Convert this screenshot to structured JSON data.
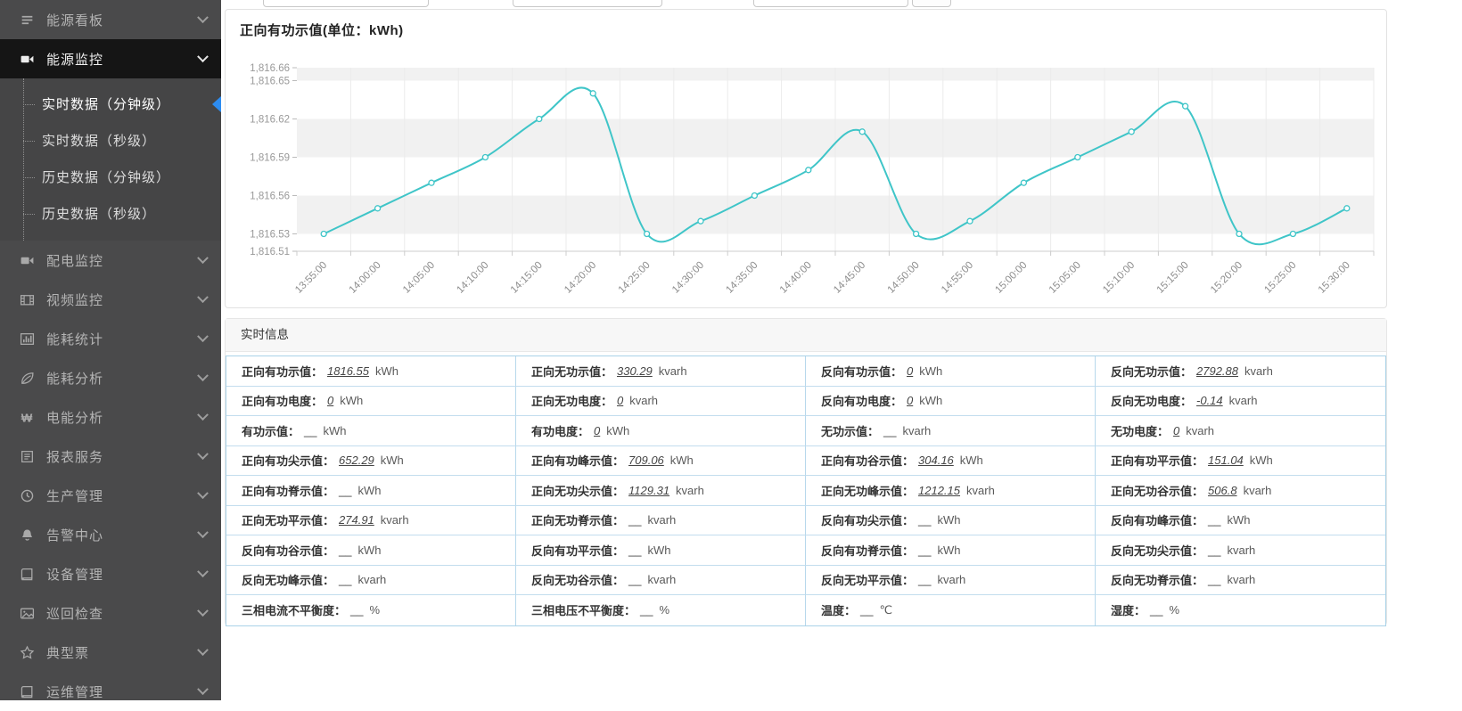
{
  "sidebar": {
    "bg_color": "#4a4a4b",
    "active_bg_color": "#151515",
    "active_marker_color": "#2d8cf0",
    "items": [
      {
        "name": "energy-dashboard",
        "label": "能源看板",
        "icon": "kanban-icon",
        "active": false
      },
      {
        "name": "energy-monitor",
        "label": "能源监控",
        "icon": "video-camera-icon",
        "active": true,
        "expanded": true,
        "submenu": [
          {
            "name": "realtime-minute",
            "label": "实时数据（分钟级）",
            "active": true
          },
          {
            "name": "realtime-second",
            "label": "实时数据（秒级）",
            "active": false
          },
          {
            "name": "history-minute",
            "label": "历史数据（分钟级）",
            "active": false
          },
          {
            "name": "history-second",
            "label": "历史数据（秒级）",
            "active": false
          }
        ]
      },
      {
        "name": "distribution-monitor",
        "label": "配电监控",
        "icon": "video-camera-icon",
        "active": false
      },
      {
        "name": "video-monitor",
        "label": "视频监控",
        "icon": "film-icon",
        "active": false
      },
      {
        "name": "energy-statistics",
        "label": "能耗统计",
        "icon": "bar-chart-icon",
        "active": false
      },
      {
        "name": "energy-analysis",
        "label": "能耗分析",
        "icon": "leaf-icon",
        "active": false
      },
      {
        "name": "power-analysis",
        "label": "电能分析",
        "icon": "won-icon",
        "active": false
      },
      {
        "name": "report-service",
        "label": "报表服务",
        "icon": "report-icon",
        "active": false
      },
      {
        "name": "production-management",
        "label": "生产管理",
        "icon": "clock-icon",
        "active": false
      },
      {
        "name": "alarm-center",
        "label": "告警中心",
        "icon": "bell-icon",
        "active": false
      },
      {
        "name": "device-management",
        "label": "设备管理",
        "icon": "book-icon",
        "active": false
      },
      {
        "name": "patrol-inspection",
        "label": "巡回检查",
        "icon": "image-icon",
        "active": false
      },
      {
        "name": "typical-ticket",
        "label": "典型票",
        "icon": "star-icon",
        "active": false
      },
      {
        "name": "ops-management",
        "label": "运维管理",
        "icon": "book-icon",
        "active": false
      }
    ]
  },
  "topbar": {
    "inputs": [
      {
        "value": ""
      },
      {
        "value": ""
      },
      {
        "value": ""
      }
    ],
    "button_label": ""
  },
  "chart_card": {
    "title": "正向有功示值(单位：kWh)"
  },
  "chart_data": {
    "type": "line",
    "title": "正向有功示值(单位：kWh)",
    "series_name": "正向有功示值",
    "categories": [
      "13:55:00",
      "14:00:00",
      "14:05:00",
      "14:10:00",
      "14:15:00",
      "14:20:00",
      "14:25:00",
      "14:30:00",
      "14:35:00",
      "14:40:00",
      "14:45:00",
      "14:50:00",
      "14:55:00",
      "15:00:00",
      "15:05:00",
      "15:10:00",
      "15:15:00",
      "15:20:00",
      "15:25:00",
      "15:30:00"
    ],
    "series": [
      {
        "name": "正向有功示值",
        "values": [
          1816.53,
          1816.55,
          1816.57,
          1816.59,
          1816.62,
          1816.64,
          1816.53,
          1816.54,
          1816.56,
          1816.58,
          1816.61,
          1816.53,
          1816.54,
          1816.57,
          1816.59,
          1816.61,
          1816.63,
          1816.53,
          1816.53,
          1816.55
        ]
      }
    ],
    "ylim": [
      1816.51,
      1816.66
    ],
    "yticks": {
      "values": [
        1816.51,
        1816.53,
        1816.56,
        1816.59,
        1816.62,
        1816.65,
        1816.66
      ],
      "labels": [
        "1,816.51",
        "1,816.53",
        "1,816.56",
        "1,816.59",
        "1,816.62",
        "1,816.65",
        "1,816.66"
      ]
    },
    "x_label_rotate": -45,
    "smooth": true,
    "grid": true,
    "legend_position": "none",
    "line_color": "#3fc5c8",
    "marker": "hollow-circle",
    "band_color": "#f1f1f1",
    "axis_label_color": "#999999"
  },
  "info_card": {
    "title": "实时信息",
    "border_color": "#a9d2e8",
    "rows": [
      [
        {
          "label": "正向有功示值：",
          "value": "1816.55",
          "unit": "kWh",
          "link": true
        },
        {
          "label": "正向无功示值：",
          "value": "330.29",
          "unit": "kvarh",
          "link": true
        },
        {
          "label": "反向有功示值：",
          "value": "0",
          "unit": "kWh",
          "link": true
        },
        {
          "label": "反向无功示值：",
          "value": "2792.88",
          "unit": "kvarh",
          "link": true
        }
      ],
      [
        {
          "label": "正向有功电度：",
          "value": "0",
          "unit": "kWh",
          "link": true
        },
        {
          "label": "正向无功电度：",
          "value": "0",
          "unit": "kvarh",
          "link": true
        },
        {
          "label": "反向有功电度：",
          "value": "0",
          "unit": "kWh",
          "link": true
        },
        {
          "label": "反向无功电度：",
          "value": "-0.14",
          "unit": "kvarh",
          "link": true
        }
      ],
      [
        {
          "label": "有功示值：",
          "value": "__",
          "unit": "kWh",
          "link": false
        },
        {
          "label": "有功电度：",
          "value": "0",
          "unit": "kWh",
          "link": true
        },
        {
          "label": "无功示值：",
          "value": "__",
          "unit": "kvarh",
          "link": false
        },
        {
          "label": "无功电度：",
          "value": "0",
          "unit": "kvarh",
          "link": true
        }
      ],
      [
        {
          "label": "正向有功尖示值：",
          "value": "652.29",
          "unit": "kWh",
          "link": true
        },
        {
          "label": "正向有功峰示值：",
          "value": "709.06",
          "unit": "kWh",
          "link": true
        },
        {
          "label": "正向有功谷示值：",
          "value": "304.16",
          "unit": "kWh",
          "link": true
        },
        {
          "label": "正向有功平示值：",
          "value": "151.04",
          "unit": "kWh",
          "link": true
        }
      ],
      [
        {
          "label": "正向有功脊示值：",
          "value": "__",
          "unit": "kWh",
          "link": false
        },
        {
          "label": "正向无功尖示值：",
          "value": "1129.31",
          "unit": "kvarh",
          "link": true
        },
        {
          "label": "正向无功峰示值：",
          "value": "1212.15",
          "unit": "kvarh",
          "link": true
        },
        {
          "label": "正向无功谷示值：",
          "value": "506.8",
          "unit": "kvarh",
          "link": true
        }
      ],
      [
        {
          "label": "正向无功平示值：",
          "value": "274.91",
          "unit": "kvarh",
          "link": true
        },
        {
          "label": "正向无功脊示值：",
          "value": "__",
          "unit": "kvarh",
          "link": false
        },
        {
          "label": "反向有功尖示值：",
          "value": "__",
          "unit": "kWh",
          "link": false
        },
        {
          "label": "反向有功峰示值：",
          "value": "__",
          "unit": "kWh",
          "link": false
        }
      ],
      [
        {
          "label": "反向有功谷示值：",
          "value": "__",
          "unit": "kWh",
          "link": false
        },
        {
          "label": "反向有功平示值：",
          "value": "__",
          "unit": "kWh",
          "link": false
        },
        {
          "label": "反向有功脊示值：",
          "value": "__",
          "unit": "kWh",
          "link": false
        },
        {
          "label": "反向无功尖示值：",
          "value": "__",
          "unit": "kvarh",
          "link": false
        }
      ],
      [
        {
          "label": "反向无功峰示值：",
          "value": "__",
          "unit": "kvarh",
          "link": false
        },
        {
          "label": "反向无功谷示值：",
          "value": "__",
          "unit": "kvarh",
          "link": false
        },
        {
          "label": "反向无功平示值：",
          "value": "__",
          "unit": "kvarh",
          "link": false
        },
        {
          "label": "反向无功脊示值：",
          "value": "__",
          "unit": "kvarh",
          "link": false
        }
      ],
      [
        {
          "label": "三相电流不平衡度：",
          "value": "__",
          "unit": "%",
          "link": false
        },
        {
          "label": "三相电压不平衡度：",
          "value": "__",
          "unit": "%",
          "link": false
        },
        {
          "label": "温度：",
          "value": "__",
          "unit": "℃",
          "link": false
        },
        {
          "label": "湿度：",
          "value": "__",
          "unit": "%",
          "link": false
        }
      ]
    ]
  }
}
